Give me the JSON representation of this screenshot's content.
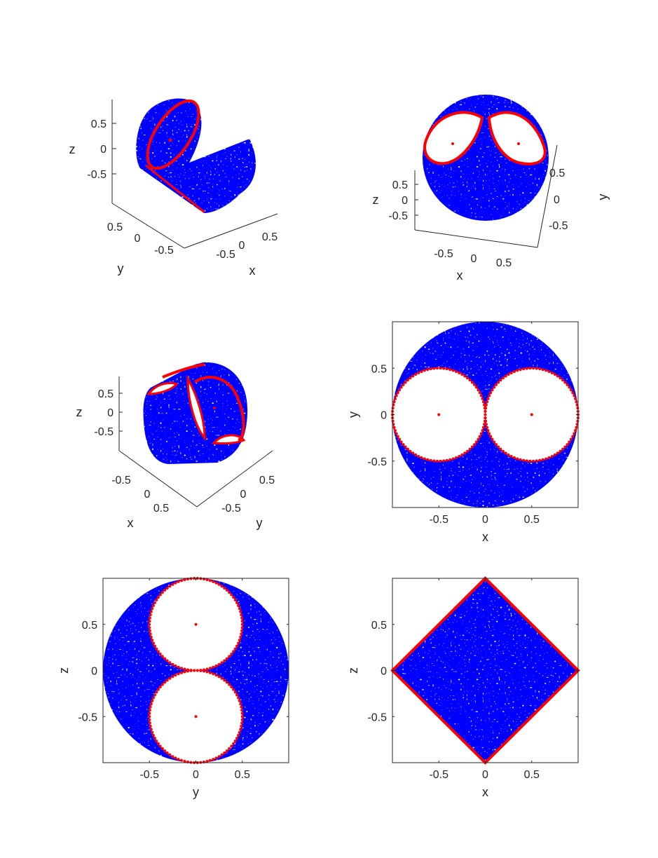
{
  "figure": {
    "colors": {
      "surface": "#0000ff",
      "boundary": "#ff0000",
      "axis": "#262626",
      "background": "#ffffff"
    }
  },
  "chart_data": [
    {
      "id": "panel-3d-view-1",
      "type": "scatter",
      "projection": "3d",
      "xlabel": "x",
      "ylabel": "y",
      "zlabel": "z",
      "xticks": [
        "-0.5",
        "0",
        "0.5"
      ],
      "yticks": [
        "-0.5",
        "0",
        "0.5"
      ],
      "zticks": [
        "-0.5",
        "0",
        "0.5"
      ],
      "series": [
        {
          "role": "point cloud",
          "color": "#0000ff"
        },
        {
          "role": "boundary curve",
          "color": "#ff0000"
        }
      ]
    },
    {
      "id": "panel-3d-view-2",
      "type": "scatter",
      "projection": "3d",
      "xlabel": "x",
      "ylabel": "y",
      "zlabel": "z",
      "xticks": [
        "-0.5",
        "0",
        "0.5"
      ],
      "yticks": [
        "-0.5",
        "0",
        "0.5"
      ],
      "zticks": [
        "-0.5",
        "0",
        "0.5"
      ],
      "series": [
        {
          "role": "point cloud",
          "color": "#0000ff"
        },
        {
          "role": "boundary curve",
          "color": "#ff0000"
        }
      ]
    },
    {
      "id": "panel-3d-view-3",
      "type": "scatter",
      "projection": "3d",
      "xlabel": "x",
      "ylabel": "y",
      "zlabel": "z",
      "xticks": [
        "-0.5",
        "0",
        "0.5"
      ],
      "yticks": [
        "-0.5",
        "0",
        "0.5"
      ],
      "zticks": [
        "-0.5",
        "0",
        "0.5"
      ],
      "series": [
        {
          "role": "point cloud",
          "color": "#0000ff"
        },
        {
          "role": "boundary curve",
          "color": "#ff0000"
        }
      ]
    },
    {
      "id": "panel-xy",
      "type": "scatter",
      "xlabel": "x",
      "ylabel": "y",
      "xlim": [
        -1,
        1
      ],
      "ylim": [
        -1,
        1
      ],
      "xticks": [
        "-0.5",
        "0",
        "0.5"
      ],
      "yticks": [
        "-0.5",
        "0",
        "0.5"
      ],
      "region": {
        "type": "disk",
        "center": [
          0,
          0
        ],
        "radius": 1
      },
      "holes": [
        {
          "type": "disk",
          "center": [
            -0.5,
            0
          ],
          "radius": 0.5
        },
        {
          "type": "disk",
          "center": [
            0.5,
            0
          ],
          "radius": 0.5
        }
      ],
      "centers": [
        [
          -0.5,
          0
        ],
        [
          0.5,
          0
        ]
      ]
    },
    {
      "id": "panel-yz",
      "type": "scatter",
      "xlabel": "y",
      "ylabel": "z",
      "xlim": [
        -1,
        1
      ],
      "ylim": [
        -1,
        1
      ],
      "xticks": [
        "-0.5",
        "0",
        "0.5"
      ],
      "yticks": [
        "-0.5",
        "0",
        "0.5"
      ],
      "region": {
        "type": "disk",
        "center": [
          0,
          0
        ],
        "radius": 1
      },
      "holes": [
        {
          "type": "disk",
          "center": [
            0,
            0.5
          ],
          "radius": 0.5
        },
        {
          "type": "disk",
          "center": [
            0,
            -0.5
          ],
          "radius": 0.5
        }
      ],
      "centers": [
        [
          0,
          0.5
        ],
        [
          0,
          -0.5
        ]
      ]
    },
    {
      "id": "panel-xz",
      "type": "scatter",
      "xlabel": "x",
      "ylabel": "z",
      "xlim": [
        -1,
        1
      ],
      "ylim": [
        -1,
        1
      ],
      "xticks": [
        "-0.5",
        "0",
        "0.5"
      ],
      "yticks": [
        "-0.5",
        "0",
        "0.5"
      ],
      "region": {
        "type": "diamond",
        "vertices": [
          [
            -1,
            0
          ],
          [
            0,
            1
          ],
          [
            1,
            0
          ],
          [
            0,
            -1
          ]
        ]
      },
      "holes": []
    }
  ]
}
